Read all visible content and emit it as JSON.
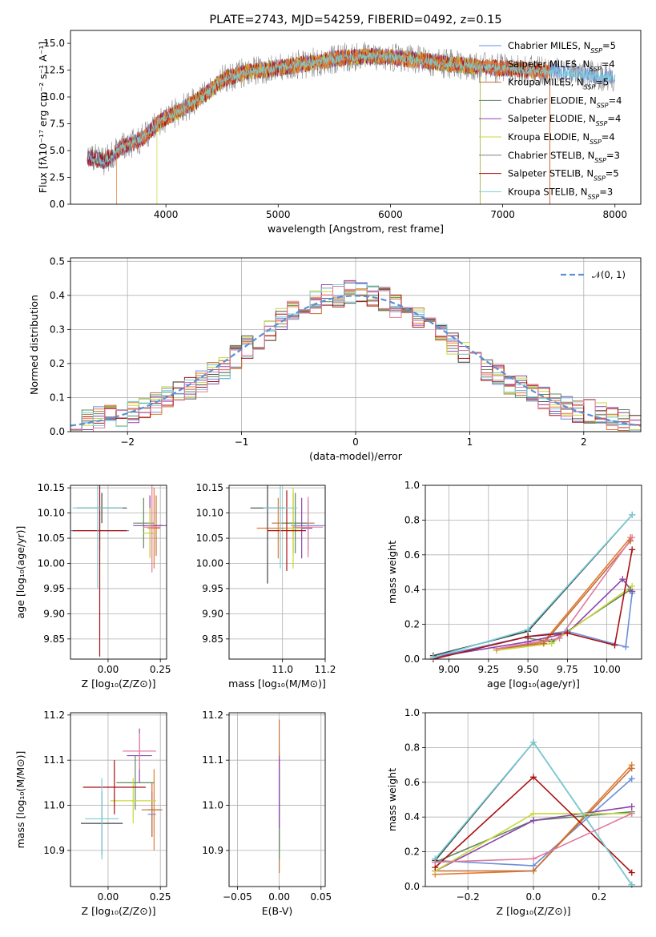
{
  "colors": [
    "#6a8fd8",
    "#e67a30",
    "#bf6f3a",
    "#5f8a5f",
    "#8e44ad",
    "#c8d837",
    "#444444",
    "#aa1111",
    "#77d0d8",
    "#e07aa0"
  ],
  "chart_data": [
    {
      "id": "spectrum",
      "type": "line",
      "title": "PLATE=2743, MJD=54259, FIBERID=0492, z=0.15",
      "xlabel": "wavelength [Angstrom, rest frame]",
      "ylabel": "Flux [fλ10⁻¹⁷ erg cm⁻² s⁻¹ A⁻¹]",
      "xlim": [
        3150,
        8230
      ],
      "ylim": [
        0,
        16.2
      ],
      "xticks": [
        4000,
        5000,
        6000,
        7000,
        8000
      ],
      "yticks": [
        0.0,
        2.5,
        5.0,
        7.5,
        10.0,
        12.5,
        15.0
      ],
      "legend_position": "top-right",
      "continuum": {
        "x": [
          3300,
          3450,
          3600,
          3800,
          3950,
          4100,
          4250,
          4400,
          4500,
          4700,
          5000,
          5300,
          5600,
          5900,
          6200,
          6500,
          6800,
          7100,
          7400,
          7700,
          8000
        ],
        "y": [
          4.4,
          4.0,
          5.2,
          6.2,
          7.8,
          8.6,
          9.5,
          10.6,
          11.6,
          12.3,
          12.7,
          13.2,
          13.7,
          13.8,
          13.5,
          13.1,
          12.8,
          12.6,
          12.4,
          12.1,
          11.8
        ]
      },
      "series": [
        {
          "name": "Chabrier MILES, N<tspan baseline-shift=\"sub\" font-size=\"8\">SSP</tspan>=5",
          "label": "Chabrier MILES, NSSP=5",
          "drop_ends": [
            null,
            null
          ]
        },
        {
          "name": "Salpeter MILES, NSSP=4",
          "label": "Salpeter MILES, NSSP=4",
          "drop_ends": [
            3560,
            7420
          ]
        },
        {
          "name": "Kroupa MILES, NSSP=5",
          "label": "Kroupa MILES, NSSP=5",
          "drop_ends": [
            null,
            7420
          ]
        },
        {
          "name": "Chabrier ELODIE, NSSP=4",
          "label": "Chabrier ELODIE, NSSP=4",
          "drop_ends": [
            null,
            6800
          ]
        },
        {
          "name": "Salpeter ELODIE, NSSP=4",
          "label": "Salpeter ELODIE, NSSP=4",
          "drop_ends": [
            null,
            6800
          ]
        },
        {
          "name": "Kroupa ELODIE, NSSP=4",
          "label": "Kroupa ELODIE, NSSP=4",
          "drop_ends": [
            3920,
            6800
          ]
        },
        {
          "name": "Chabrier STELIB, NSSP=3",
          "label": "Chabrier STELIB, NSSP=3",
          "drop_ends": [
            null,
            null
          ]
        },
        {
          "name": "Salpeter STELIB, NSSP=5",
          "label": "Salpeter STELIB, NSSP=5",
          "drop_ends": [
            null,
            7420
          ]
        },
        {
          "name": "Kroupa STELIB, NSSP=3",
          "label": "Kroupa STELIB, NSSP=3",
          "drop_ends": [
            null,
            null
          ]
        }
      ]
    },
    {
      "id": "residuals",
      "type": "histogram",
      "xlabel": "(data-model)/error",
      "ylabel": "Normed distribution",
      "xlim": [
        -2.5,
        2.5
      ],
      "ylim": [
        0,
        0.51
      ],
      "xticks": [
        -2,
        -1,
        0,
        1,
        2
      ],
      "yticks": [
        0.0,
        0.1,
        0.2,
        0.3,
        0.4,
        0.5
      ],
      "grid": true,
      "bin_edges_start": -2.5,
      "bin_width": 0.1,
      "base": [
        0.02,
        0.03,
        0.04,
        0.05,
        0.05,
        0.06,
        0.07,
        0.08,
        0.1,
        0.12,
        0.13,
        0.15,
        0.17,
        0.19,
        0.22,
        0.25,
        0.27,
        0.3,
        0.33,
        0.35,
        0.37,
        0.38,
        0.4,
        0.4,
        0.41,
        0.41,
        0.4,
        0.39,
        0.37,
        0.35,
        0.33,
        0.31,
        0.29,
        0.26,
        0.23,
        0.21,
        0.18,
        0.16,
        0.14,
        0.13,
        0.11,
        0.1,
        0.08,
        0.07,
        0.06,
        0.06,
        0.05,
        0.04,
        0.03,
        0.02
      ],
      "reference": {
        "name": "𝒩(0, 1)",
        "legend_position": "top-right"
      }
    },
    {
      "id": "age-vs-Z",
      "type": "errorbar",
      "xlabel": "Z [log₁₀(Z/Z⊙)]",
      "ylabel": "age  [log₁₀(age/yr)]",
      "xlim": [
        -0.18,
        0.28
      ],
      "ylim": [
        9.81,
        10.155
      ],
      "xticks": [
        0.0,
        0.25
      ],
      "yticks": [
        9.85,
        9.9,
        9.95,
        10.0,
        10.05,
        10.1,
        10.15
      ],
      "points": [
        {
          "x": -0.04,
          "y": 10.065,
          "xerr": 0.14,
          "yerr": 0.04
        },
        {
          "x": 0.22,
          "y": 10.07,
          "xerr": 0.03,
          "yerr": 0.08
        },
        {
          "x": 0.23,
          "y": 10.075,
          "xerr": 0.03,
          "yerr": 0.06
        },
        {
          "x": 0.17,
          "y": 10.08,
          "xerr": 0.05,
          "yerr": 0.05
        },
        {
          "x": 0.2,
          "y": 10.075,
          "xerr": 0.08,
          "yerr": 0.06
        },
        {
          "x": 0.2,
          "y": 10.06,
          "xerr": 0.03,
          "yerr": 0.05
        },
        {
          "x": -0.03,
          "y": 10.11,
          "xerr": 0.12,
          "yerr": 0.03
        },
        {
          "x": -0.04,
          "y": 10.065,
          "xerr": 0.13,
          "yerr": 0.25
        },
        {
          "x": -0.05,
          "y": 10.11,
          "xerr": 0.12,
          "yerr": 0.16
        },
        {
          "x": 0.21,
          "y": 10.072,
          "xerr": 0.04,
          "yerr": 0.09
        }
      ]
    },
    {
      "id": "age-vs-mass",
      "type": "errorbar",
      "xlabel": "mass [log₁₀(M/M⊙)]",
      "ylabel": "",
      "xlim": [
        10.75,
        11.2
      ],
      "ylim": [
        9.81,
        10.155
      ],
      "xticks": [
        11.0,
        11.2
      ],
      "yticks": [
        9.85,
        9.9,
        9.95,
        10.0,
        10.05,
        10.1,
        10.15
      ],
      "points": [
        {
          "x": 11.12,
          "y": 10.075,
          "xerr": 0.08,
          "yerr": 0.05
        },
        {
          "x": 10.98,
          "y": 10.07,
          "xerr": 0.1,
          "yerr": 0.06
        },
        {
          "x": 11.05,
          "y": 10.08,
          "xerr": 0.1,
          "yerr": 0.06
        },
        {
          "x": 11.06,
          "y": 10.08,
          "xerr": 0.06,
          "yerr": 0.06
        },
        {
          "x": 11.09,
          "y": 10.07,
          "xerr": 0.05,
          "yerr": 0.06
        },
        {
          "x": 11.05,
          "y": 10.07,
          "xerr": 0.04,
          "yerr": 0.08
        },
        {
          "x": 10.93,
          "y": 10.11,
          "xerr": 0.08,
          "yerr": 0.15
        },
        {
          "x": 11.02,
          "y": 10.065,
          "xerr": 0.09,
          "yerr": 0.08
        },
        {
          "x": 10.99,
          "y": 10.11,
          "xerr": 0.08,
          "yerr": 0.12
        },
        {
          "x": 11.12,
          "y": 10.072,
          "xerr": 0.07,
          "yerr": 0.06
        }
      ]
    },
    {
      "id": "weight-vs-age",
      "type": "line",
      "xlabel": "age  [log₁₀(age/yr)]",
      "ylabel": "mass weight",
      "xlim": [
        8.85,
        10.22
      ],
      "ylim": [
        0,
        1.0
      ],
      "xticks": [
        9.0,
        9.25,
        9.5,
        9.75,
        10.0
      ],
      "yticks": [
        0.0,
        0.2,
        0.4,
        0.6,
        0.8,
        1.0
      ],
      "grid": true,
      "series": [
        {
          "x": [
            8.9,
            9.5,
            9.75,
            10.12,
            10.16
          ],
          "y": [
            0.01,
            0.13,
            0.16,
            0.07,
            0.38
          ]
        },
        {
          "x": [
            9.3,
            9.6,
            10.15
          ],
          "y": [
            0.05,
            0.1,
            0.7
          ]
        },
        {
          "x": [
            9.3,
            9.6,
            10.15
          ],
          "y": [
            0.06,
            0.09,
            0.68
          ]
        },
        {
          "x": [
            9.5,
            9.65,
            10.15
          ],
          "y": [
            0.12,
            0.1,
            0.4
          ]
        },
        {
          "x": [
            8.9,
            9.5,
            9.75,
            10.1,
            10.16
          ],
          "y": [
            0.01,
            0.1,
            0.15,
            0.46,
            0.39
          ]
        },
        {
          "x": [
            9.3,
            9.65,
            10.16
          ],
          "y": [
            0.05,
            0.09,
            0.42
          ]
        },
        {
          "x": [
            8.9,
            9.5,
            10.16
          ],
          "y": [
            0.02,
            0.16,
            0.83
          ]
        },
        {
          "x": [
            8.9,
            9.5,
            9.75,
            10.05,
            10.16
          ],
          "y": [
            0.0,
            0.13,
            0.15,
            0.08,
            0.63
          ]
        },
        {
          "x": [
            8.9,
            9.5,
            10.16
          ],
          "y": [
            0.01,
            0.17,
            0.83
          ]
        },
        {
          "x": [
            9.3,
            9.7,
            10.16
          ],
          "y": [
            0.06,
            0.12,
            0.7
          ]
        }
      ]
    },
    {
      "id": "mass-vs-Z",
      "type": "errorbar",
      "xlabel": "Z [log₁₀(Z/Z⊙)]",
      "ylabel": "mass [log₁₀(M/M⊙)]",
      "xlim": [
        -0.18,
        0.28
      ],
      "ylim": [
        10.82,
        11.205
      ],
      "xticks": [
        0.0,
        0.25
      ],
      "yticks": [
        10.9,
        11.0,
        11.1,
        11.2
      ],
      "points": [
        {
          "x": 0.21,
          "y": 10.98,
          "xerr": 0.02,
          "yerr": 0.05
        },
        {
          "x": 0.22,
          "y": 10.99,
          "xerr": 0.03,
          "yerr": 0.09
        },
        {
          "x": 0.21,
          "y": 10.99,
          "xerr": 0.05,
          "yerr": 0.06
        },
        {
          "x": 0.13,
          "y": 11.05,
          "xerr": 0.09,
          "yerr": 0.06
        },
        {
          "x": 0.15,
          "y": 11.11,
          "xerr": 0.06,
          "yerr": 0.06
        },
        {
          "x": 0.12,
          "y": 11.01,
          "xerr": 0.11,
          "yerr": 0.05
        },
        {
          "x": -0.03,
          "y": 10.96,
          "xerr": 0.1,
          "yerr": 0.07
        },
        {
          "x": 0.03,
          "y": 11.04,
          "xerr": 0.15,
          "yerr": 0.06
        },
        {
          "x": -0.03,
          "y": 10.97,
          "xerr": 0.08,
          "yerr": 0.09
        },
        {
          "x": 0.15,
          "y": 11.12,
          "xerr": 0.08,
          "yerr": 0.04
        }
      ]
    },
    {
      "id": "mass-vs-EBV",
      "type": "errorbar",
      "xlabel": "E(B-V)",
      "ylabel": "",
      "xlim": [
        -0.06,
        0.055
      ],
      "ylim": [
        10.82,
        11.205
      ],
      "xticks": [
        -0.05,
        0.0,
        0.05
      ],
      "yticks": [
        10.9,
        11.0,
        11.1,
        11.2
      ],
      "points": [
        {
          "x": 0.0,
          "y": 11.0,
          "xerr": 0.0,
          "yerr": 0.1
        },
        {
          "x": 0.0,
          "y": 11.05,
          "xerr": 0.0,
          "yerr": 0.07
        },
        {
          "x": 0.0,
          "y": 11.02,
          "xerr": 0.0,
          "yerr": 0.17
        },
        {
          "x": 0.0,
          "y": 10.98,
          "xerr": 0.0,
          "yerr": 0.1
        },
        {
          "x": 0.0,
          "y": 11.03,
          "xerr": 0.0,
          "yerr": 0.08
        }
      ]
    },
    {
      "id": "weight-vs-Z",
      "type": "line",
      "xlabel": "Z [log₁₀(Z/Z⊙)]",
      "ylabel": "mass weight",
      "xlim": [
        -0.33,
        0.33
      ],
      "ylim": [
        0,
        1.0
      ],
      "xticks": [
        -0.2,
        0.0,
        0.2
      ],
      "yticks": [
        0.0,
        0.2,
        0.4,
        0.6,
        0.8,
        1.0
      ],
      "grid": true,
      "series": [
        {
          "x": [
            -0.3,
            0.0,
            0.3
          ],
          "y": [
            0.15,
            0.12,
            0.62
          ]
        },
        {
          "x": [
            -0.3,
            0.0,
            0.3
          ],
          "y": [
            0.07,
            0.09,
            0.7
          ]
        },
        {
          "x": [
            -0.3,
            0.0,
            0.3
          ],
          "y": [
            0.09,
            0.09,
            0.68
          ]
        },
        {
          "x": [
            -0.3,
            0.0,
            0.3
          ],
          "y": [
            0.14,
            0.38,
            0.43
          ]
        },
        {
          "x": [
            -0.3,
            0.0,
            0.3
          ],
          "y": [
            0.09,
            0.38,
            0.46
          ]
        },
        {
          "x": [
            -0.3,
            0.0,
            0.3
          ],
          "y": [
            0.09,
            0.42,
            0.42
          ]
        },
        {
          "x": [
            -0.3,
            0.0,
            0.3
          ],
          "y": [
            0.15,
            0.83,
            0.01
          ]
        },
        {
          "x": [
            -0.3,
            0.0,
            0.3
          ],
          "y": [
            0.11,
            0.63,
            0.08
          ]
        },
        {
          "x": [
            -0.3,
            0.0,
            0.3
          ],
          "y": [
            0.16,
            0.83,
            0.01
          ]
        },
        {
          "x": [
            -0.3,
            0.0,
            0.3
          ],
          "y": [
            0.14,
            0.16,
            0.42
          ]
        }
      ]
    }
  ]
}
